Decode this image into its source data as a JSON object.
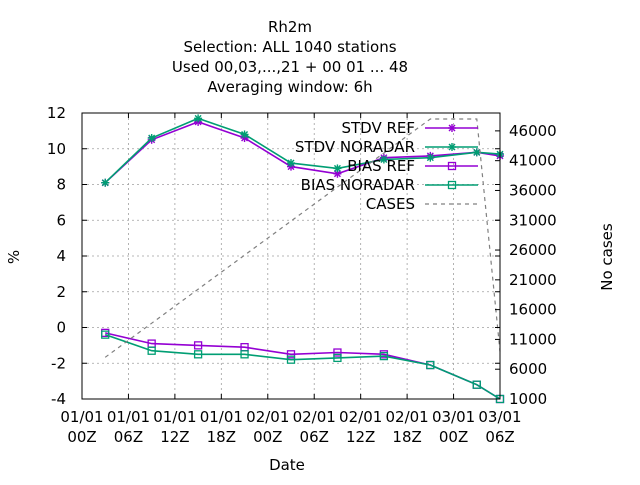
{
  "chart_data": {
    "type": "line",
    "title_lines": [
      "Rh2m",
      "Selection: ALL    1040 stations",
      "Used  00,03,...,21  + 00 01 ... 48",
      "Averaging window:  6h"
    ],
    "xlabel": "Date",
    "ylabel": "%",
    "y2label": "No cases",
    "x_tick_labels": [
      [
        "01/01",
        "00Z"
      ],
      [
        "01/01",
        "06Z"
      ],
      [
        "01/01",
        "12Z"
      ],
      [
        "01/01",
        "18Z"
      ],
      [
        "02/01",
        "00Z"
      ],
      [
        "02/01",
        "06Z"
      ],
      [
        "02/01",
        "12Z"
      ],
      [
        "02/01",
        "18Z"
      ],
      [
        "03/01",
        "00Z"
      ],
      [
        "03/01",
        "06Z"
      ]
    ],
    "x_range": [
      0,
      54
    ],
    "ylim": [
      -4,
      12
    ],
    "y_ticks": [
      -4,
      -2,
      0,
      2,
      4,
      6,
      8,
      10,
      12
    ],
    "y2lim": [
      1000,
      49000
    ],
    "y2_ticks": [
      1000,
      6000,
      11000,
      16000,
      21000,
      26000,
      31000,
      36000,
      41000,
      46000
    ],
    "grid": true,
    "legend_position": "top-right",
    "series": [
      {
        "name": "STDV REF",
        "axis": "y",
        "color": "#9400d3",
        "marker": "star",
        "x": [
          3,
          9,
          15,
          21,
          27,
          33,
          39,
          45,
          51,
          54
        ],
        "y": [
          8.1,
          10.5,
          11.5,
          10.6,
          9.0,
          8.6,
          9.5,
          9.6,
          9.8,
          9.6
        ]
      },
      {
        "name": "STDV NORADAR",
        "axis": "y",
        "color": "#009e73",
        "marker": "star",
        "x": [
          3,
          9,
          15,
          21,
          27,
          33,
          39,
          45,
          51,
          54
        ],
        "y": [
          8.1,
          10.6,
          11.7,
          10.8,
          9.2,
          8.9,
          9.4,
          9.5,
          9.8,
          9.7
        ]
      },
      {
        "name": "BIAS REF",
        "axis": "y",
        "color": "#9400d3",
        "marker": "square",
        "x": [
          3,
          9,
          15,
          21,
          27,
          33,
          39,
          45,
          51,
          54
        ],
        "y": [
          -0.3,
          -0.9,
          -1.0,
          -1.1,
          -1.5,
          -1.4,
          -1.5,
          -2.1,
          -3.2,
          -4.0
        ]
      },
      {
        "name": "BIAS NORADAR",
        "axis": "y",
        "color": "#009e73",
        "marker": "square",
        "x": [
          3,
          9,
          15,
          21,
          27,
          33,
          39,
          45,
          51,
          54
        ],
        "y": [
          -0.4,
          -1.3,
          -1.5,
          -1.5,
          -1.8,
          -1.7,
          -1.6,
          -2.1,
          -3.2,
          -4.0
        ]
      },
      {
        "name": "CASES",
        "axis": "y2",
        "color": "#808080",
        "dash": true,
        "x": [
          3,
          45,
          51,
          54
        ],
        "y": [
          8000,
          48000,
          48000,
          9000
        ]
      }
    ]
  }
}
